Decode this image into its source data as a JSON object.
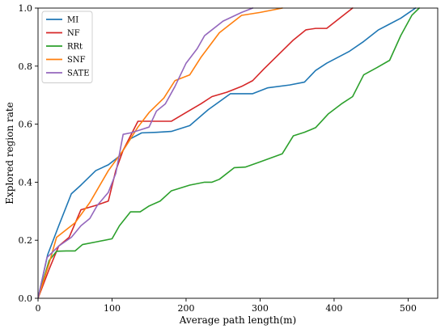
{
  "chart_data": {
    "type": "line",
    "title": "",
    "xlabel": "Average path length(m)",
    "ylabel": "Explored region rate",
    "xlim": [
      0,
      540
    ],
    "ylim": [
      0,
      1.0
    ],
    "x_ticks": [
      0,
      100,
      200,
      300,
      400,
      500
    ],
    "y_ticks": [
      0.0,
      0.2,
      0.4,
      0.6,
      0.8,
      1.0
    ],
    "x_tick_labels": [
      "0",
      "100",
      "200",
      "300",
      "400",
      "500"
    ],
    "y_tick_labels": [
      "0.0",
      "0.2",
      "0.4",
      "0.6",
      "0.8",
      "1.0"
    ],
    "grid": false,
    "legend_position": "top-left",
    "series": [
      {
        "name": "MI",
        "color": "#1f77b4",
        "points": [
          [
            0,
            0.0
          ],
          [
            13,
            0.15
          ],
          [
            28,
            0.25
          ],
          [
            45,
            0.36
          ],
          [
            58,
            0.39
          ],
          [
            78,
            0.44
          ],
          [
            95,
            0.46
          ],
          [
            110,
            0.49
          ],
          [
            125,
            0.55
          ],
          [
            140,
            0.57
          ],
          [
            160,
            0.572
          ],
          [
            180,
            0.575
          ],
          [
            205,
            0.595
          ],
          [
            230,
            0.65
          ],
          [
            260,
            0.705
          ],
          [
            290,
            0.705
          ],
          [
            310,
            0.725
          ],
          [
            340,
            0.735
          ],
          [
            360,
            0.745
          ],
          [
            375,
            0.785
          ],
          [
            390,
            0.81
          ],
          [
            420,
            0.85
          ],
          [
            440,
            0.885
          ],
          [
            460,
            0.925
          ],
          [
            475,
            0.945
          ],
          [
            490,
            0.965
          ],
          [
            510,
            1.0
          ]
        ]
      },
      {
        "name": "NF",
        "color": "#d62728",
        "points": [
          [
            0,
            0.0
          ],
          [
            15,
            0.1
          ],
          [
            28,
            0.18
          ],
          [
            42,
            0.21
          ],
          [
            58,
            0.305
          ],
          [
            78,
            0.32
          ],
          [
            95,
            0.335
          ],
          [
            105,
            0.44
          ],
          [
            115,
            0.51
          ],
          [
            125,
            0.56
          ],
          [
            135,
            0.61
          ],
          [
            160,
            0.61
          ],
          [
            180,
            0.61
          ],
          [
            200,
            0.64
          ],
          [
            220,
            0.67
          ],
          [
            235,
            0.695
          ],
          [
            255,
            0.71
          ],
          [
            275,
            0.73
          ],
          [
            290,
            0.75
          ],
          [
            305,
            0.79
          ],
          [
            325,
            0.84
          ],
          [
            345,
            0.89
          ],
          [
            362,
            0.925
          ],
          [
            375,
            0.93
          ],
          [
            390,
            0.93
          ],
          [
            410,
            0.97
          ],
          [
            425,
            1.0
          ]
        ]
      },
      {
        "name": "RRt",
        "color": "#2ca02c",
        "points": [
          [
            0,
            0.0
          ],
          [
            15,
            0.13
          ],
          [
            25,
            0.162
          ],
          [
            38,
            0.163
          ],
          [
            50,
            0.163
          ],
          [
            60,
            0.185
          ],
          [
            80,
            0.195
          ],
          [
            100,
            0.205
          ],
          [
            110,
            0.25
          ],
          [
            125,
            0.298
          ],
          [
            138,
            0.298
          ],
          [
            150,
            0.318
          ],
          [
            165,
            0.335
          ],
          [
            180,
            0.37
          ],
          [
            205,
            0.39
          ],
          [
            225,
            0.4
          ],
          [
            235,
            0.4
          ],
          [
            245,
            0.41
          ],
          [
            265,
            0.45
          ],
          [
            280,
            0.452
          ],
          [
            300,
            0.47
          ],
          [
            330,
            0.498
          ],
          [
            345,
            0.56
          ],
          [
            360,
            0.572
          ],
          [
            375,
            0.588
          ],
          [
            392,
            0.635
          ],
          [
            410,
            0.67
          ],
          [
            425,
            0.695
          ],
          [
            440,
            0.77
          ],
          [
            458,
            0.795
          ],
          [
            475,
            0.82
          ],
          [
            490,
            0.905
          ],
          [
            505,
            0.975
          ],
          [
            515,
            1.0
          ]
        ]
      },
      {
        "name": "SNF",
        "color": "#ff7f0e",
        "points": [
          [
            0,
            0.0
          ],
          [
            15,
            0.12
          ],
          [
            25,
            0.21
          ],
          [
            50,
            0.26
          ],
          [
            70,
            0.33
          ],
          [
            95,
            0.44
          ],
          [
            115,
            0.51
          ],
          [
            135,
            0.59
          ],
          [
            150,
            0.64
          ],
          [
            170,
            0.69
          ],
          [
            185,
            0.75
          ],
          [
            205,
            0.77
          ],
          [
            220,
            0.83
          ],
          [
            245,
            0.915
          ],
          [
            275,
            0.975
          ],
          [
            300,
            0.985
          ],
          [
            330,
            1.0
          ]
        ]
      },
      {
        "name": "SATE",
        "color": "#9467bd",
        "points": [
          [
            0,
            0.0
          ],
          [
            12,
            0.14
          ],
          [
            28,
            0.18
          ],
          [
            45,
            0.21
          ],
          [
            58,
            0.25
          ],
          [
            70,
            0.275
          ],
          [
            80,
            0.32
          ],
          [
            95,
            0.365
          ],
          [
            105,
            0.43
          ],
          [
            115,
            0.565
          ],
          [
            125,
            0.57
          ],
          [
            138,
            0.58
          ],
          [
            150,
            0.59
          ],
          [
            160,
            0.645
          ],
          [
            172,
            0.67
          ],
          [
            185,
            0.73
          ],
          [
            200,
            0.81
          ],
          [
            215,
            0.86
          ],
          [
            225,
            0.905
          ],
          [
            250,
            0.955
          ],
          [
            275,
            0.985
          ],
          [
            290,
            1.0
          ]
        ]
      }
    ]
  }
}
